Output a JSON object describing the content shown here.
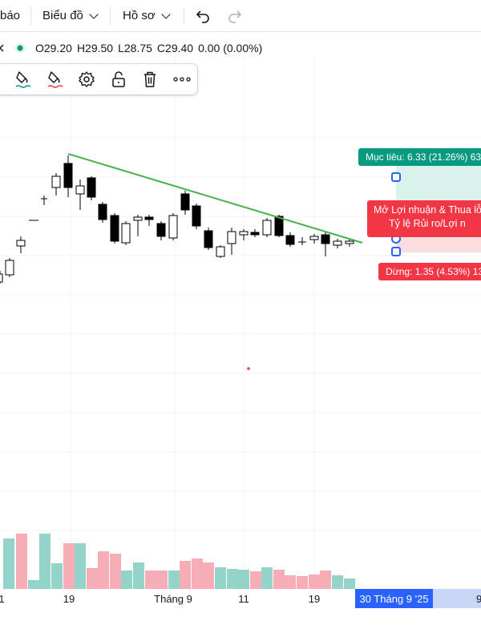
{
  "topbar": {
    "alert_partial": "báo",
    "chart_menu": "Biểu đồ",
    "profile_menu": "Hồ sơ"
  },
  "ohlc": {
    "open": "O29.20",
    "high": "H29.50",
    "low": "L28.75",
    "close": "C29.40",
    "change": "0.00 (0.00%)"
  },
  "position_tool": {
    "target_label": "Mục tiêu: 6.33 (21.26%) 63",
    "stop_label": "Dừng: 1.35 (4.53%) 13",
    "pnl_line1": "Mở Lợi nhuận & Thua lỗ",
    "pnl_line2": "Tỷ lệ Rủi ro/Lợi n"
  },
  "time_axis": {
    "labels": [
      "1",
      "19",
      "Tháng 9",
      "11",
      "19"
    ],
    "cursor_date": "30 Tháng 9 '25",
    "next_partial": "9"
  },
  "colors": {
    "up_volume": "#8fd1c7",
    "down_volume": "#f7a9b3",
    "trendline": "#4caf50",
    "target_fill": "#daf2ec",
    "stop_fill": "#fbdde0",
    "accent": "#2962ff"
  },
  "icons": [
    "fill-bucket-icon",
    "fill-bucket-red-icon",
    "settings-icon",
    "unlock-icon",
    "trash-icon",
    "more-icon",
    "undo-icon",
    "redo-icon",
    "close-icon",
    "visibility-dot-icon"
  ]
}
